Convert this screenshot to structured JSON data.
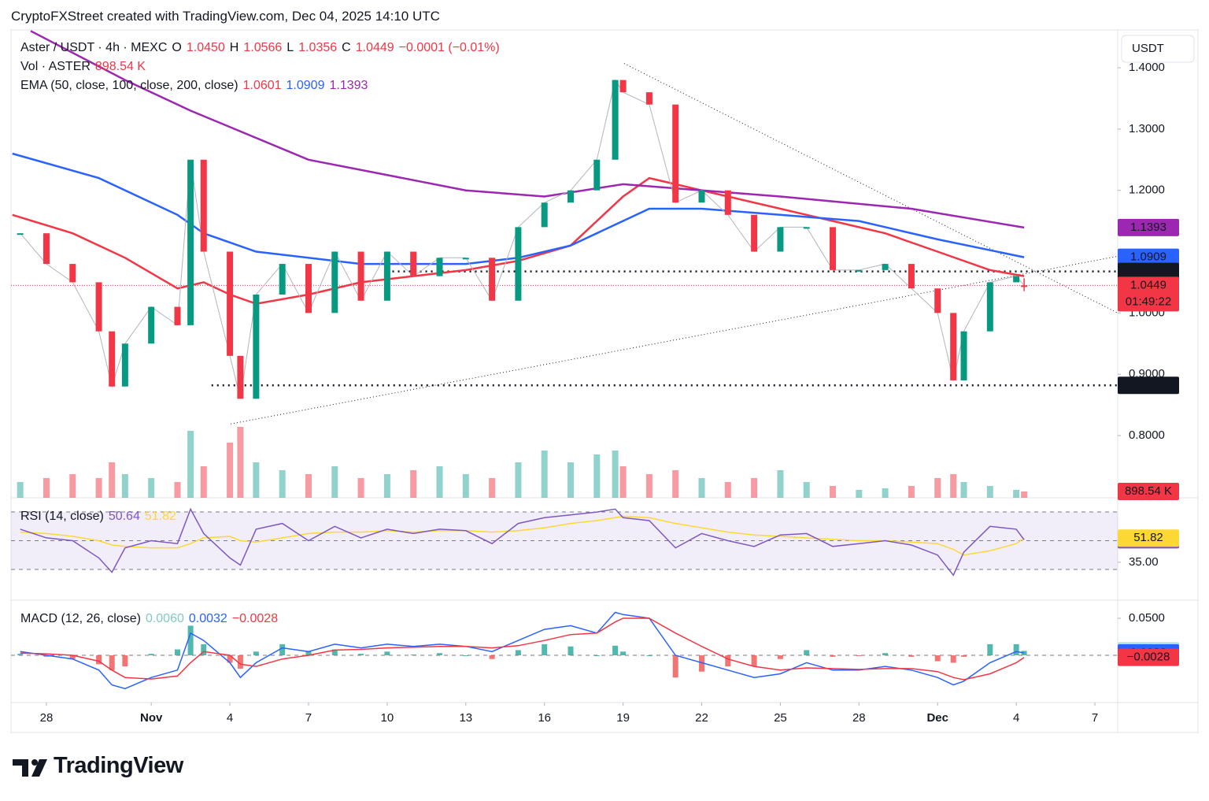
{
  "header": {
    "attribution": "CryptoFXStreet created with TradingView.com, Dec 04, 2025 14:10 UTC"
  },
  "logo": "TradingView",
  "chart_data": [
    {
      "type": "price",
      "title": "Aster / USDT · 4h · MEXC",
      "currency": "USDT",
      "ohlc": [
        {
          "name": "O",
          "value": 1.045,
          "label": "1.0450"
        },
        {
          "name": "H",
          "value": 1.0566
        },
        {
          "name": "L",
          "value": 1.0356
        },
        {
          "name": "C",
          "value": 1.0449
        }
      ],
      "change": "−0.0001 (−0.01%)",
      "countdown": "01:49:22",
      "legend_color": "#f23645",
      "up_color": "#089981",
      "down_color": "#f23645",
      "xlim": [
        -1.35,
        40.87
      ],
      "ylim": [
        0.6985,
        1.4617
      ],
      "yticks": [
        {
          "value": 0.8,
          "label": "0.8000"
        },
        {
          "value": 0.9,
          "label": "0.9000"
        },
        {
          "value": 1.0,
          "label": "1.0000"
        },
        {
          "value": 1.2,
          "label": "1.2000"
        },
        {
          "value": 1.3,
          "label": "1.3000"
        },
        {
          "value": 1.4,
          "label": "1.4000"
        }
      ],
      "x": [
        -1,
        0,
        1,
        2,
        2.5,
        3,
        4,
        5,
        5.5,
        6,
        7,
        7.4,
        8,
        9,
        10,
        11,
        12,
        13,
        14,
        15,
        16,
        17,
        18,
        19,
        20,
        21,
        21.7,
        22,
        23,
        24,
        25,
        26,
        27,
        28,
        29,
        30,
        31,
        32,
        33,
        34,
        34.6,
        35,
        36,
        37,
        37.3
      ],
      "values": [
        1.13,
        1.08,
        1.05,
        0.97,
        0.88,
        0.95,
        1.01,
        0.98,
        1.25,
        1.1,
        0.93,
        0.86,
        1.03,
        1.08,
        1.0,
        1.1,
        1.02,
        1.1,
        1.06,
        1.09,
        1.09,
        1.02,
        1.14,
        1.18,
        1.2,
        1.25,
        1.38,
        1.36,
        1.34,
        1.18,
        1.2,
        1.16,
        1.1,
        1.14,
        1.14,
        1.07,
        1.07,
        1.08,
        1.04,
        1.0,
        0.89,
        0.97,
        1.05,
        1.06,
        1.0449
      ],
      "volume": {
        "label": "Vol · ASTER",
        "up_color": "#26a69a80",
        "down_color": "#f2364580",
        "ylim": [
          0,
          66500
        ],
        "last_label": "898.54 K",
        "values": [
          2240,
          2800,
          3360,
          2800,
          5040,
          3360,
          2800,
          2240,
          9520,
          4480,
          7840,
          10080,
          5040,
          3920,
          3360,
          4480,
          2800,
          3360,
          3920,
          4480,
          3360,
          2800,
          5040,
          6720,
          5040,
          6160,
          6720,
          4480,
          3360,
          3920,
          2800,
          2240,
          2800,
          3920,
          2240,
          1680,
          1120,
          1344,
          1680,
          2800,
          3360,
          2240,
          1680,
          1120,
          898.54
        ]
      },
      "ema_label": "EMA (50, close, 100, close, 200, close)",
      "series": [
        {
          "color": "#f23645",
          "x": [
            -1.3,
            1,
            3,
            5,
            6,
            7,
            8,
            10,
            12,
            14,
            16,
            18,
            20,
            22,
            23,
            24,
            26,
            28,
            30,
            32,
            34,
            36,
            37.3
          ],
          "values": [
            1.16,
            1.13,
            1.09,
            1.04,
            1.05,
            1.03,
            1.015,
            1.03,
            1.05,
            1.06,
            1.07,
            1.085,
            1.11,
            1.19,
            1.22,
            1.21,
            1.19,
            1.17,
            1.15,
            1.13,
            1.1,
            1.07,
            1.0601
          ]
        },
        {
          "color": "#2962ff",
          "x": [
            -1.3,
            2,
            5,
            6,
            8,
            12,
            16,
            18,
            20,
            23,
            25,
            28,
            31,
            34,
            37.3
          ],
          "values": [
            1.26,
            1.22,
            1.16,
            1.13,
            1.1,
            1.08,
            1.08,
            1.09,
            1.11,
            1.17,
            1.17,
            1.16,
            1.15,
            1.12,
            1.0909
          ]
        },
        {
          "color": "#9c27b0",
          "x": [
            -0.6,
            3,
            5.5,
            10,
            16,
            19,
            22,
            28,
            33,
            37.3
          ],
          "values": [
            1.46,
            1.38,
            1.33,
            1.25,
            1.2,
            1.19,
            1.21,
            1.19,
            1.17,
            1.1393
          ]
        }
      ],
      "levels": [
        {
          "value": 1.0678,
          "from": 13.2
        },
        {
          "value": 0.8819,
          "from": 6.3
        }
      ],
      "trendlines": [
        {
          "x": [
            7.03,
            40.87
          ],
          "values": [
            0.819,
            1.0925
          ]
        },
        {
          "x": [
            22.04,
            40.87
          ],
          "values": [
            1.407,
            1.0
          ]
        }
      ]
    },
    {
      "type": "line",
      "title": "RSI (14, close)",
      "xlim": [
        -1.35,
        40.87
      ],
      "ylim": [
        8.6,
        79.9
      ],
      "yticks": [
        {
          "value": 35,
          "label": "35.00"
        }
      ],
      "bands": [
        30,
        50,
        70
      ],
      "band_fill": "#7e57c2",
      "x": [
        -1,
        0,
        1,
        2,
        2.5,
        3,
        4,
        5,
        5.5,
        6,
        7,
        7.4,
        8,
        9,
        10,
        11,
        12,
        13,
        14,
        15,
        16,
        17,
        18,
        19,
        20,
        21,
        21.7,
        22,
        23,
        24,
        25,
        26,
        27,
        28,
        29,
        30,
        31,
        32,
        33,
        34,
        34.6,
        35,
        36,
        37,
        37.3
      ],
      "series": [
        {
          "color": "#7e57c2",
          "values": [
            58,
            52,
            50,
            38,
            28,
            45,
            50,
            48,
            72,
            55,
            38,
            33,
            58,
            62,
            50,
            60,
            52,
            58,
            55,
            58,
            57,
            48,
            62,
            66,
            68,
            70,
            72,
            66,
            64,
            45,
            55,
            50,
            46,
            54,
            55,
            46,
            48,
            50,
            47,
            40,
            26,
            42,
            60,
            58,
            50.64
          ]
        },
        {
          "color": "#fdd835",
          "values": [
            56,
            55,
            53,
            50,
            47,
            46,
            45,
            45,
            48,
            52,
            53,
            50,
            49,
            52,
            55,
            56,
            56,
            57,
            56,
            57,
            57,
            56,
            57,
            59,
            62,
            64,
            66,
            67,
            66,
            62,
            59,
            56,
            54,
            53,
            52,
            51,
            50,
            50,
            49,
            48,
            44,
            40,
            43,
            48,
            51.82
          ]
        }
      ]
    },
    {
      "type": "macd",
      "title": "MACD (12, 26, close)",
      "xlim": [
        -1.35,
        40.87
      ],
      "ylim": [
        -0.0638,
        0.0745
      ],
      "yticks": [
        {
          "value": 0.05,
          "label": "0.0500"
        }
      ],
      "zero_line": true,
      "xticks": [
        {
          "value": 0,
          "label": "28"
        },
        {
          "value": 4,
          "label": "Nov"
        },
        {
          "value": 7,
          "label": "4"
        },
        {
          "value": 10,
          "label": "7"
        },
        {
          "value": 13,
          "label": "10"
        },
        {
          "value": 16,
          "label": "13"
        },
        {
          "value": 19,
          "label": "16"
        },
        {
          "value": 22,
          "label": "19"
        },
        {
          "value": 25,
          "label": "22"
        },
        {
          "value": 28,
          "label": "25"
        },
        {
          "value": 31,
          "label": "28"
        },
        {
          "value": 34,
          "label": "Dec"
        },
        {
          "value": 37,
          "label": "4"
        },
        {
          "value": 40,
          "label": "7"
        }
      ],
      "x": [
        -1,
        0,
        1,
        2,
        2.5,
        3,
        4,
        5,
        5.5,
        6,
        7,
        7.4,
        8,
        9,
        10,
        11,
        12,
        13,
        14,
        15,
        16,
        17,
        18,
        19,
        20,
        21,
        21.7,
        22,
        23,
        24,
        25,
        26,
        27,
        28,
        29,
        30,
        31,
        32,
        33,
        34,
        34.6,
        35,
        36,
        37,
        37.3
      ],
      "histogram": {
        "color": "#b2dfdb",
        "up_color": "#26a69a",
        "down_color": "#ef5350",
        "last_label": "0.0060",
        "values": [
          0.002,
          -0.002,
          -0.005,
          -0.012,
          -0.02,
          -0.015,
          0.002,
          0.008,
          0.04,
          0.015,
          -0.01,
          -0.018,
          0.005,
          0.015,
          0.005,
          0.008,
          0.002,
          0.005,
          0.001,
          0.003,
          0,
          -0.005,
          0.007,
          0.015,
          0.012,
          0,
          0.013,
          0.005,
          0,
          -0.03,
          -0.022,
          -0.015,
          -0.015,
          -0.005,
          0.007,
          -0.002,
          -0.001,
          0.003,
          -0.002,
          -0.008,
          -0.01,
          -0.002,
          0.015,
          0.015,
          0.006
        ]
      },
      "series": [
        {
          "color": "#2962ff",
          "values": [
            0.005,
            0,
            -0.005,
            -0.02,
            -0.04,
            -0.045,
            -0.03,
            -0.02,
            0.03,
            0.02,
            -0.01,
            -0.03,
            -0.01,
            0.01,
            0.005,
            0.015,
            0.01,
            0.015,
            0.012,
            0.015,
            0.012,
            0.005,
            0.02,
            0.035,
            0.04,
            0.03,
            0.058,
            0.055,
            0.05,
            0,
            -0.01,
            -0.02,
            -0.03,
            -0.025,
            -0.01,
            -0.02,
            -0.02,
            -0.015,
            -0.02,
            -0.03,
            -0.04,
            -0.035,
            -0.01,
            0.005,
            0.0032
          ]
        },
        {
          "color": "#f23645",
          "last_label": "−0.0028",
          "values": [
            0.003,
            0.002,
            0,
            -0.008,
            -0.02,
            -0.03,
            -0.032,
            -0.028,
            -0.01,
            0.005,
            0,
            -0.012,
            -0.015,
            -0.005,
            0,
            0.007,
            0.008,
            0.01,
            0.011,
            0.012,
            0.012,
            0.01,
            0.013,
            0.02,
            0.028,
            0.03,
            0.045,
            0.05,
            0.05,
            0.03,
            0.012,
            -0.005,
            -0.015,
            -0.02,
            -0.017,
            -0.018,
            -0.019,
            -0.018,
            -0.018,
            -0.022,
            -0.03,
            -0.033,
            -0.025,
            -0.01,
            -0.0028
          ]
        }
      ]
    }
  ]
}
